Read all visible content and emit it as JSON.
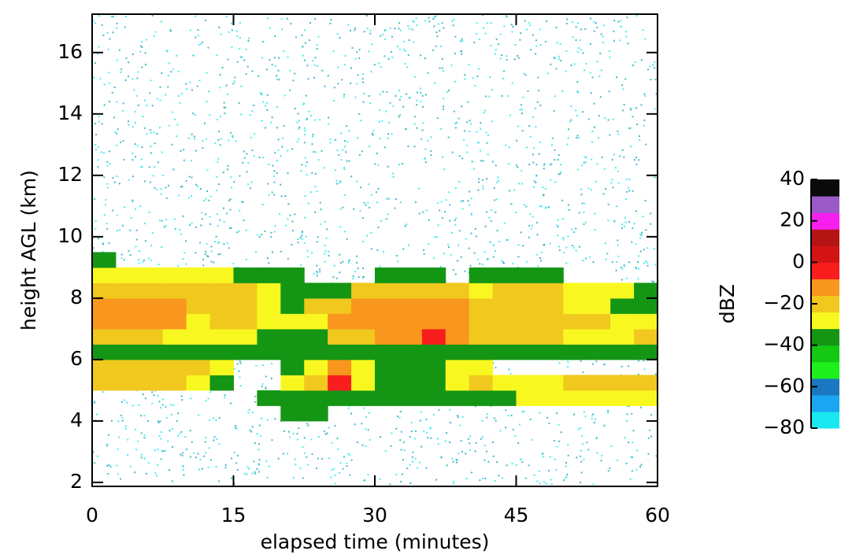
{
  "chart_data": {
    "type": "heatmap",
    "xlabel": "elapsed time (minutes)",
    "ylabel": "height AGL (km)",
    "xlim": [
      0,
      60
    ],
    "ylim": [
      1.87,
      17.25
    ],
    "xticks": [
      0,
      15,
      30,
      45,
      60
    ],
    "yticks": [
      2,
      4,
      6,
      8,
      10,
      12,
      14,
      16
    ],
    "xbins": [
      0,
      2.5,
      5,
      7.5,
      10,
      12.5,
      15,
      17.5,
      20,
      22.5,
      25,
      27.5,
      30,
      32.5,
      35,
      37.5,
      40,
      42.5,
      45,
      47.5,
      50,
      52.5,
      55,
      57.5,
      60
    ],
    "ybins": [
      4,
      4.5,
      5,
      5.5,
      6,
      6.5,
      7,
      7.5,
      8,
      8.5,
      9,
      9.5,
      10
    ],
    "values": [
      [
        null,
        null,
        null,
        null,
        null,
        null,
        null,
        null,
        -40,
        -40,
        null,
        null,
        null,
        null,
        null,
        null,
        null,
        null,
        null,
        null,
        null,
        null,
        null,
        null
      ],
      [
        null,
        null,
        null,
        null,
        null,
        null,
        null,
        -35,
        -35,
        -35,
        -38,
        -38,
        -38,
        -38,
        -38,
        -35,
        -35,
        -35,
        -30,
        -30,
        -30,
        -25,
        -25,
        -25
      ],
      [
        -20,
        -20,
        -20,
        -20,
        -25,
        -35,
        null,
        null,
        -30,
        -20,
        -5,
        -25,
        -35,
        -35,
        -35,
        -25,
        -20,
        -30,
        -30,
        -30,
        -20,
        -20,
        -20,
        -20
      ],
      [
        -18,
        -18,
        -18,
        -18,
        -18,
        -30,
        null,
        null,
        -35,
        -25,
        -15,
        -30,
        -40,
        -40,
        -40,
        -30,
        -30,
        null,
        null,
        null,
        null,
        null,
        null,
        null
      ],
      [
        -40,
        -40,
        -40,
        -40,
        -40,
        -40,
        -40,
        -40,
        -40,
        -40,
        -35,
        -35,
        -35,
        -35,
        -35,
        -35,
        -35,
        -35,
        -40,
        -40,
        -35,
        -35,
        -35,
        -35
      ],
      [
        -20,
        -20,
        -20,
        -30,
        -30,
        -25,
        -25,
        -35,
        -35,
        -35,
        -20,
        -20,
        -15,
        -15,
        -2,
        -15,
        -20,
        -20,
        -20,
        -20,
        -25,
        -25,
        -25,
        -20
      ],
      [
        -15,
        -15,
        -15,
        -15,
        -25,
        -20,
        -20,
        -30,
        -30,
        -25,
        -14,
        -14,
        -14,
        -14,
        -14,
        -14,
        -18,
        -18,
        -22,
        -22,
        -22,
        -22,
        -30,
        -30
      ],
      [
        -16,
        -16,
        -16,
        -16,
        -18,
        -18,
        -18,
        -25,
        -35,
        -22,
        -22,
        -16,
        -16,
        -16,
        -16,
        -16,
        -20,
        -20,
        -20,
        -20,
        -25,
        -25,
        -35,
        -35
      ],
      [
        -20,
        -20,
        -20,
        -20,
        -20,
        -20,
        -22,
        -30,
        -38,
        -38,
        -35,
        -22,
        -22,
        -22,
        -22,
        -22,
        -25,
        -20,
        -20,
        -20,
        -30,
        -30,
        -30,
        -38
      ],
      [
        -30,
        -30,
        -30,
        -30,
        -30,
        -30,
        -35,
        -35,
        -40,
        null,
        null,
        null,
        -38,
        -38,
        -38,
        null,
        -38,
        -35,
        -35,
        -35,
        null,
        null,
        null,
        null
      ],
      [
        -40,
        null,
        null,
        null,
        null,
        null,
        null,
        null,
        null,
        null,
        null,
        null,
        null,
        null,
        null,
        null,
        null,
        null,
        null,
        null,
        null,
        null,
        null,
        null
      ],
      [
        null,
        null,
        null,
        null,
        null,
        null,
        null,
        null,
        null,
        null,
        null,
        null,
        null,
        null,
        null,
        null,
        null,
        null,
        null,
        null,
        null,
        null,
        null,
        null
      ]
    ],
    "colorbar": {
      "label": "dBZ",
      "clim": [
        -80,
        40
      ],
      "bounds": [
        -80,
        -72,
        -64,
        -56,
        -48,
        -40,
        -32,
        -24,
        -16,
        -8,
        0,
        8,
        16,
        24,
        32,
        40
      ],
      "colors": [
        "#19e8f0",
        "#1aa6f0",
        "#1a78c0",
        "#1ef01e",
        "#14c814",
        "#149614",
        "#f8f820",
        "#f0c81e",
        "#f8961e",
        "#f81e1e",
        "#d21414",
        "#b41414",
        "#f81ef0",
        "#9a5ac8",
        "#0a0a0a"
      ],
      "ticks": [
        {
          "value": -80,
          "label": "−80"
        },
        {
          "value": -60,
          "label": "−60"
        },
        {
          "value": -40,
          "label": "−40"
        },
        {
          "value": -20,
          "label": "−20"
        },
        0,
        20,
        40
      ]
    }
  }
}
